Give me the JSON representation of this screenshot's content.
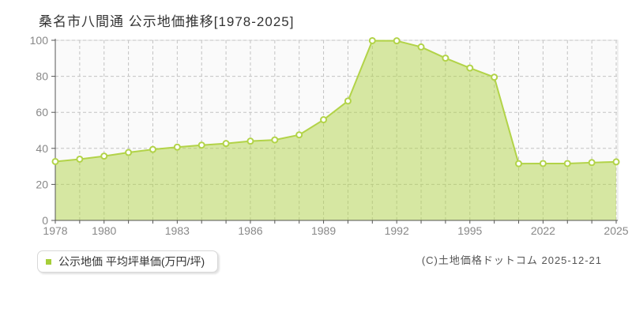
{
  "chart_data": {
    "type": "area",
    "title": "桑名市八間通 公示地価推移[1978-2025]",
    "series_name": "公示地価 平均坪単価(万円/坪)",
    "categories": [
      1978,
      1979,
      1980,
      1981,
      1982,
      1983,
      1984,
      1985,
      1986,
      1987,
      1988,
      1989,
      1990,
      1991,
      1992,
      1993,
      1994,
      1995,
      1996,
      2021,
      2022,
      2023,
      2024,
      2025
    ],
    "values": [
      32.7,
      34.0,
      35.7,
      37.7,
      39.4,
      40.7,
      41.8,
      42.7,
      44.0,
      44.7,
      47.5,
      55.9,
      66.3,
      99.8,
      99.7,
      96.3,
      90.1,
      84.6,
      79.5,
      31.5,
      31.6,
      31.6,
      32.1,
      32.5
    ],
    "ylabel": "平均坪単価(万円/坪)",
    "xlabel": "",
    "ylim": [
      0,
      100
    ],
    "y_ticks": [
      0,
      20,
      40,
      60,
      80,
      100
    ],
    "x_tick_indices": [
      0,
      2,
      5,
      8,
      11,
      14,
      17,
      20,
      23
    ],
    "x_tick_labels": [
      "1978",
      "1980",
      "1983",
      "1986",
      "1989",
      "1992",
      "1995",
      "2022",
      "2025"
    ],
    "grid": true,
    "legend": {
      "label": "公示地価 平均坪単価(万円/坪)",
      "position": "bottom-left"
    },
    "colors": {
      "line": "#b2d348",
      "area_fill": "rgba(177,212,73,0.5)",
      "marker_fill": "#ffffff",
      "legend_marker": "#a6ce39",
      "grid": "#c3c3c3",
      "plot_bg": "#fafafa",
      "plot_border": "#e3e3e3",
      "axis": "#555555",
      "tick_label": "#888888",
      "title_text": "#333333"
    }
  },
  "footer": {
    "copyright": "(C)土地価格ドットコム 2025-12-21"
  }
}
